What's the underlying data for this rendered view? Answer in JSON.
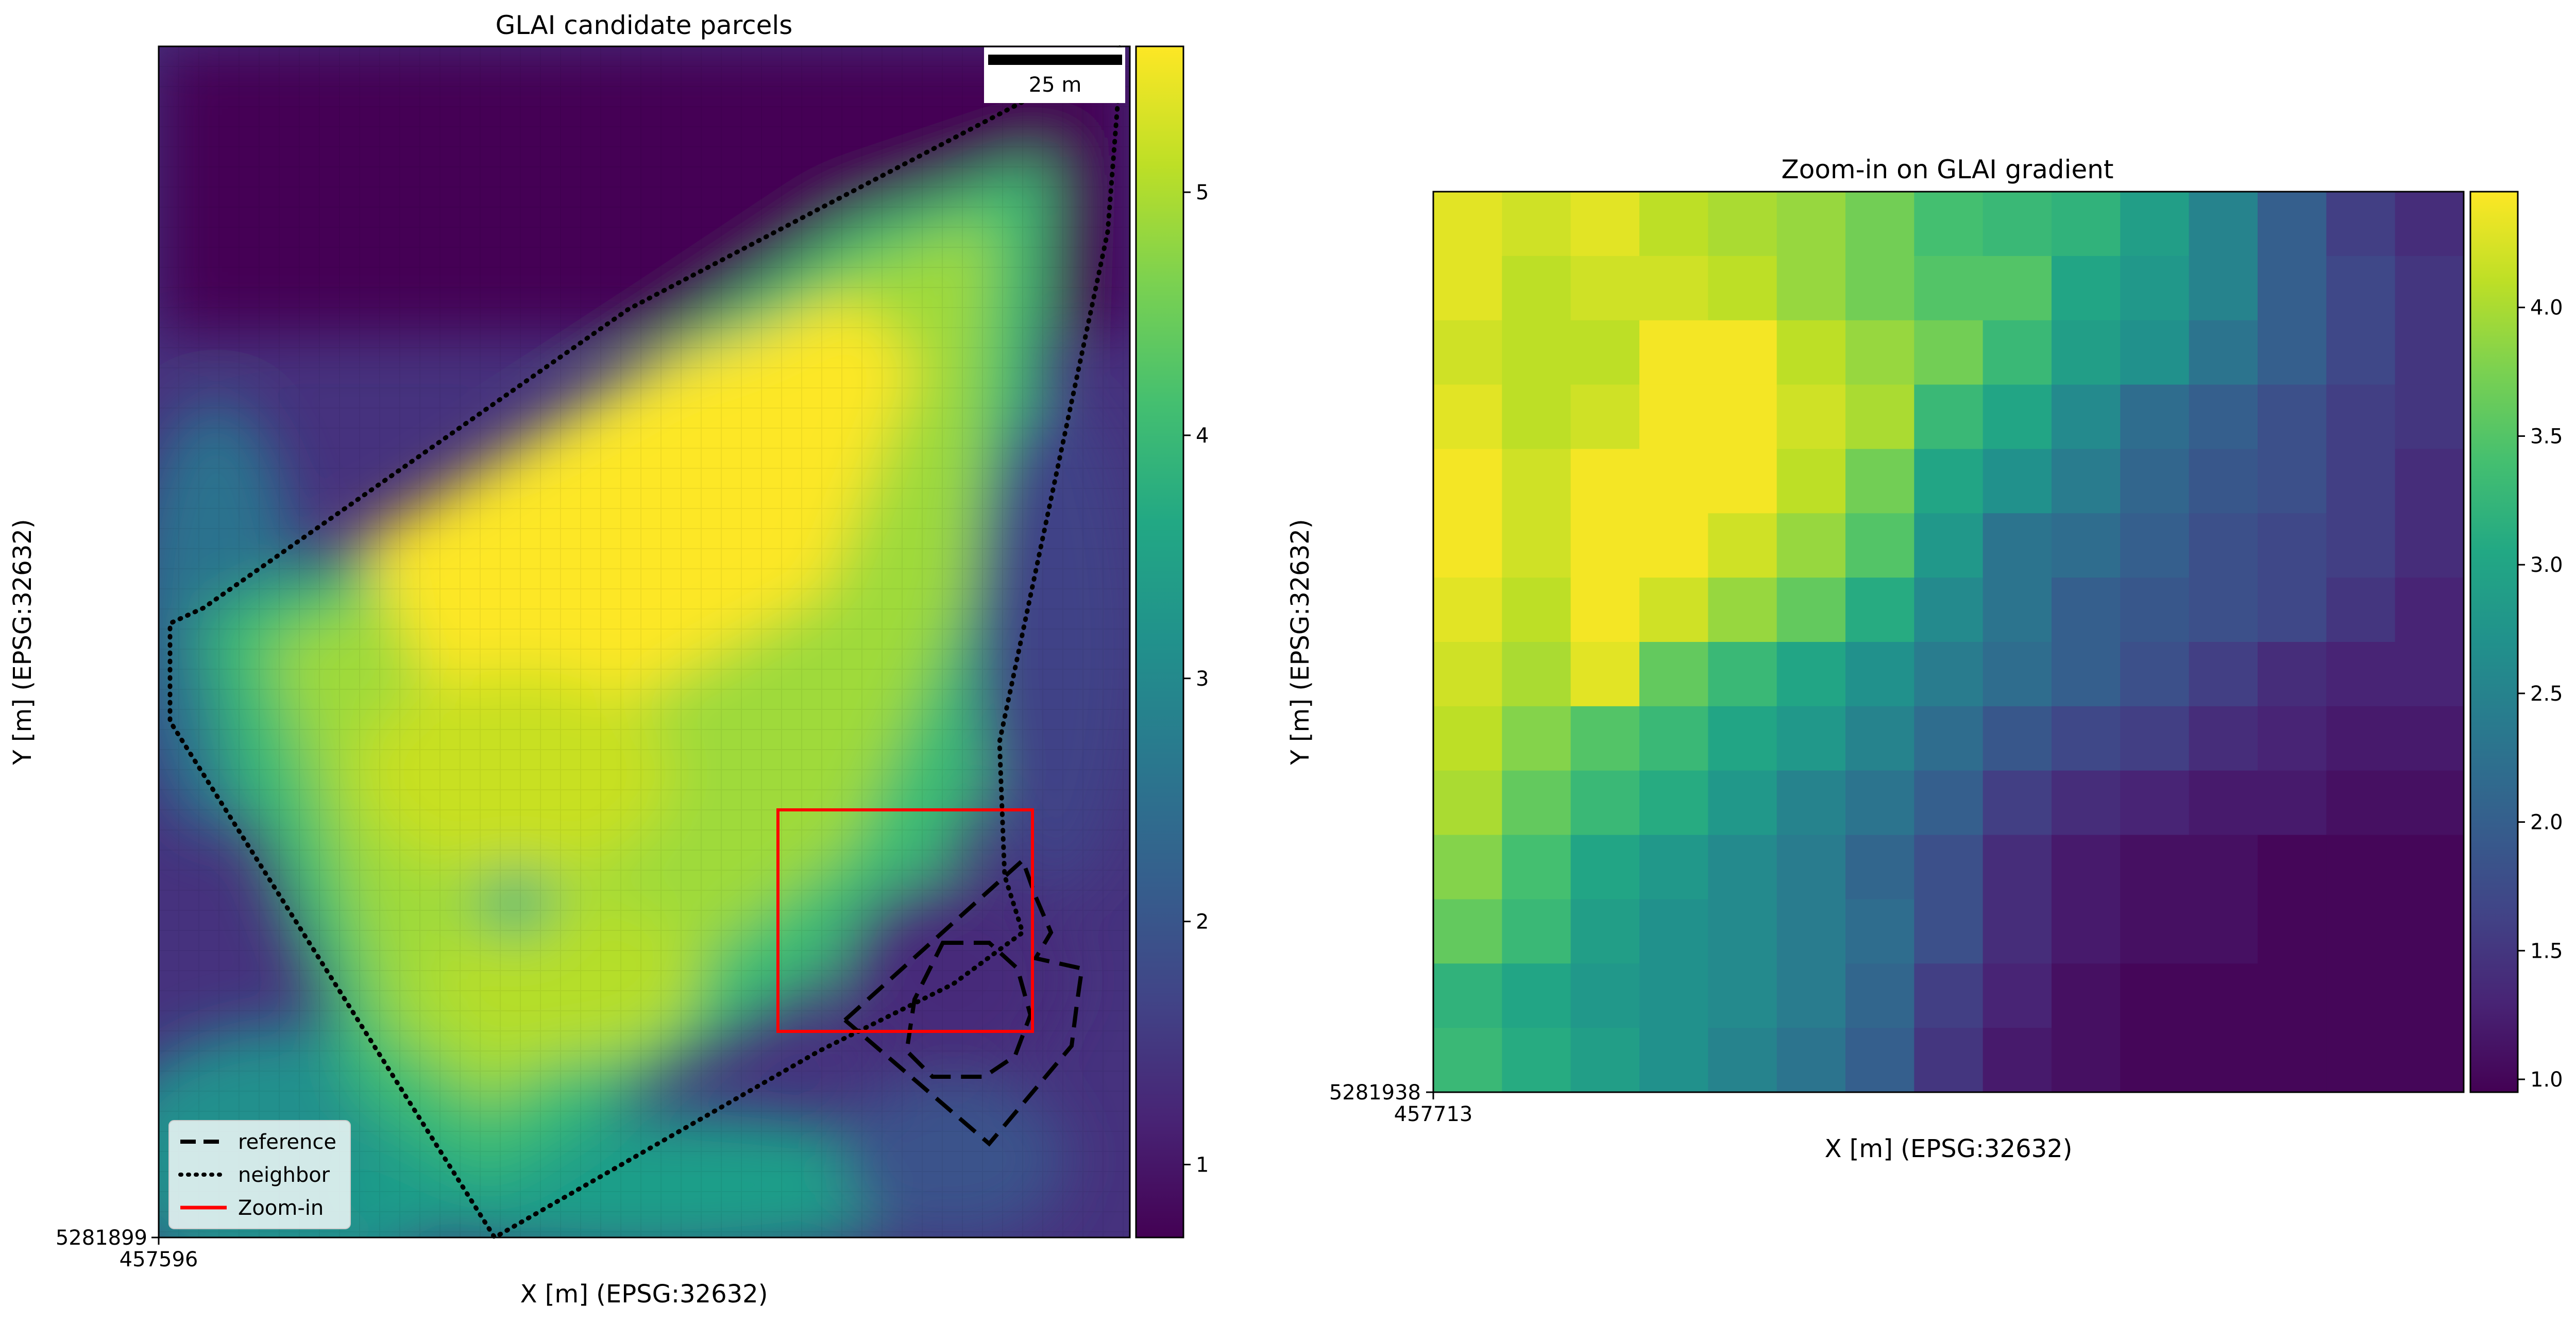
{
  "chart_data": [
    {
      "type": "heatmap",
      "title": "GLAI candidate parcels",
      "xlabel": "X [m] (EPSG:32632)",
      "ylabel": "Y [m] (EPSG:32632)",
      "x_tick_label": "457596",
      "y_tick_label": "5281899",
      "scale_bar_label": "25 m",
      "colorbar": {
        "ticks": [
          1,
          2,
          3,
          4,
          5
        ],
        "range": [
          0.7,
          5.6
        ],
        "colormap": "viridis"
      },
      "legend": {
        "placement": "lower-left",
        "entries": [
          {
            "label": "reference",
            "style": "dashed",
            "color": "#000000"
          },
          {
            "label": "neighbor",
            "style": "dotted",
            "color": "#000000"
          },
          {
            "label": "Zoom-in",
            "style": "solid",
            "color": "#ff0000"
          }
        ]
      },
      "grid": false
    },
    {
      "type": "heatmap",
      "title": "Zoom-in on GLAI gradient",
      "xlabel": "X [m] (EPSG:32632)",
      "ylabel": "Y [m] (EPSG:32632)",
      "x_tick_label": "457713",
      "y_tick_label": "5281938",
      "colorbar": {
        "ticks": [
          1.0,
          1.5,
          2.0,
          2.5,
          3.0,
          3.5,
          4.0
        ],
        "range": [
          0.95,
          4.45
        ],
        "colormap": "viridis"
      },
      "grid": false,
      "values": [
        [
          4.3,
          4.2,
          4.3,
          4.1,
          4.0,
          3.9,
          3.7,
          3.4,
          3.3,
          3.2,
          2.9,
          2.5,
          2.0,
          1.6,
          1.4
        ],
        [
          4.3,
          4.1,
          4.2,
          4.2,
          4.1,
          3.9,
          3.7,
          3.5,
          3.5,
          3.0,
          2.8,
          2.5,
          2.0,
          1.7,
          1.5
        ],
        [
          4.2,
          4.1,
          4.1,
          4.4,
          4.4,
          4.1,
          3.9,
          3.7,
          3.3,
          2.9,
          2.7,
          2.3,
          2.0,
          1.7,
          1.5
        ],
        [
          4.3,
          4.1,
          4.2,
          4.4,
          4.4,
          4.2,
          4.0,
          3.3,
          3.0,
          2.6,
          2.2,
          2.0,
          1.8,
          1.6,
          1.5
        ],
        [
          4.4,
          4.2,
          4.4,
          4.4,
          4.4,
          4.1,
          3.7,
          3.0,
          2.7,
          2.4,
          2.1,
          1.9,
          1.8,
          1.6,
          1.4
        ],
        [
          4.4,
          4.2,
          4.4,
          4.4,
          4.2,
          3.9,
          3.5,
          2.8,
          2.3,
          2.2,
          2.0,
          1.8,
          1.7,
          1.6,
          1.4
        ],
        [
          4.3,
          4.1,
          4.4,
          4.2,
          3.9,
          3.6,
          3.1,
          2.6,
          2.3,
          2.0,
          1.9,
          1.8,
          1.7,
          1.5,
          1.3
        ],
        [
          4.2,
          4.0,
          4.3,
          3.6,
          3.3,
          3.0,
          2.7,
          2.4,
          2.2,
          2.0,
          1.8,
          1.6,
          1.4,
          1.3,
          1.3
        ],
        [
          4.1,
          3.8,
          3.5,
          3.3,
          3.0,
          2.8,
          2.5,
          2.2,
          1.9,
          1.7,
          1.6,
          1.4,
          1.3,
          1.2,
          1.2
        ],
        [
          4.0,
          3.6,
          3.3,
          3.1,
          2.8,
          2.5,
          2.3,
          2.0,
          1.6,
          1.4,
          1.3,
          1.2,
          1.2,
          1.1,
          1.1
        ],
        [
          3.8,
          3.4,
          3.0,
          2.8,
          2.6,
          2.4,
          2.1,
          1.8,
          1.4,
          1.2,
          1.1,
          1.1,
          1.0,
          1.0,
          1.0
        ],
        [
          3.6,
          3.3,
          2.9,
          2.7,
          2.6,
          2.4,
          2.2,
          1.8,
          1.4,
          1.2,
          1.1,
          1.1,
          1.0,
          1.0,
          1.0
        ],
        [
          3.2,
          3.0,
          2.8,
          2.7,
          2.6,
          2.4,
          2.1,
          1.6,
          1.3,
          1.1,
          1.0,
          1.0,
          1.0,
          1.0,
          1.0
        ],
        [
          3.3,
          3.1,
          2.9,
          2.7,
          2.5,
          2.3,
          2.0,
          1.5,
          1.2,
          1.1,
          1.0,
          1.0,
          1.0,
          1.0,
          1.0
        ]
      ]
    }
  ]
}
